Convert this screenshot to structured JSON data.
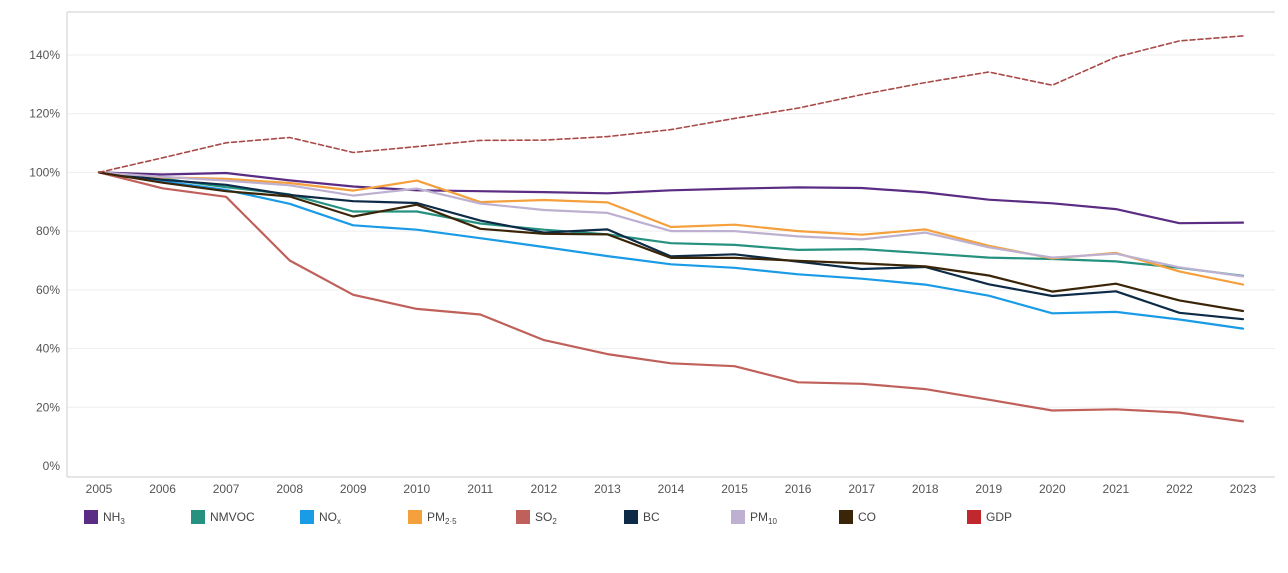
{
  "chart_data": {
    "type": "line",
    "title": "",
    "xlabel": "",
    "ylabel": "",
    "x": [
      "2005",
      "2006",
      "2007",
      "2008",
      "2009",
      "2010",
      "2011",
      "2012",
      "2013",
      "2014",
      "2015",
      "2016",
      "2017",
      "2018",
      "2019",
      "2020",
      "2021",
      "2022",
      "2023"
    ],
    "ylim": [
      0,
      150
    ],
    "yticks": [
      0,
      20,
      40,
      60,
      80,
      100,
      120,
      140
    ],
    "ytick_labels": [
      "0%",
      "20%",
      "40%",
      "60%",
      "80%",
      "100%",
      "120%",
      "140%"
    ],
    "grid": true,
    "legend_position": "bottom",
    "series": [
      {
        "name": "NH",
        "sub": "3",
        "sub_style": "sub",
        "color": "#5b2c83",
        "dashed": false,
        "values": [
          100,
          99.3,
          99.8,
          97.3,
          95.2,
          93.9,
          93.6,
          93.3,
          92.9,
          93.9,
          94.5,
          94.9,
          94.7,
          93.2,
          90.7,
          89.5,
          87.5,
          82.7,
          82.9
        ]
      },
      {
        "name": "NMVOC",
        "sub": "",
        "sub_style": "",
        "color": "#26917f",
        "dashed": false,
        "values": [
          100,
          97.9,
          95.0,
          92.5,
          86.7,
          86.7,
          82.6,
          80.5,
          78.9,
          75.9,
          75.3,
          73.6,
          73.9,
          72.5,
          71.0,
          70.5,
          69.7,
          67.5,
          64.8
        ]
      },
      {
        "name": "NO",
        "sub": "x",
        "sub_style": "sub",
        "color": "#1a9be6",
        "dashed": false,
        "values": [
          100,
          97.0,
          94.0,
          89.3,
          82.0,
          80.5,
          77.6,
          74.6,
          71.5,
          68.7,
          67.5,
          65.3,
          63.8,
          61.8,
          58.0,
          52.0,
          52.5,
          49.9,
          46.8
        ]
      },
      {
        "name": "PM",
        "sub": "2·5",
        "sub_style": "sub",
        "color": "#f4a03c",
        "dashed": false,
        "values": [
          100,
          98.3,
          97.8,
          96.4,
          93.8,
          97.2,
          89.9,
          90.6,
          89.8,
          81.4,
          82.2,
          80.0,
          78.8,
          80.6,
          75.0,
          70.7,
          72.6,
          66.3,
          61.8
        ]
      },
      {
        "name": "SO",
        "sub": "2",
        "sub_style": "sub",
        "color": "#c0605a",
        "dashed": false,
        "values": [
          100,
          94.6,
          91.7,
          70.0,
          58.3,
          53.5,
          51.6,
          42.9,
          38.1,
          35.0,
          34.0,
          28.5,
          28.0,
          26.2,
          22.6,
          18.9,
          19.3,
          18.2,
          15.2
        ]
      },
      {
        "name": "BC",
        "sub": "",
        "sub_style": "",
        "color": "#0d2b47",
        "dashed": false,
        "values": [
          100,
          97.5,
          95.8,
          92.3,
          90.2,
          89.6,
          83.6,
          79.5,
          80.6,
          71.4,
          72.1,
          69.6,
          67.1,
          67.8,
          61.9,
          57.9,
          59.5,
          52.2,
          50.0
        ]
      },
      {
        "name": "PM",
        "sub": "10",
        "sub_style": "sub",
        "color": "#bdb0d0",
        "dashed": false,
        "values": [
          100,
          98.5,
          97.2,
          95.6,
          92.1,
          94.5,
          89.4,
          87.2,
          86.2,
          80.0,
          80.0,
          78.2,
          77.2,
          79.5,
          74.5,
          71.0,
          72.3,
          67.7,
          64.6
        ]
      },
      {
        "name": "CO",
        "sub": "",
        "sub_style": "",
        "color": "#3a2508",
        "dashed": false,
        "values": [
          100,
          96.5,
          93.6,
          91.8,
          85.0,
          89.0,
          80.8,
          79.1,
          78.9,
          70.9,
          70.9,
          69.9,
          69.0,
          68.0,
          64.9,
          59.4,
          62.1,
          56.4,
          52.8
        ]
      },
      {
        "name": "GDP",
        "sub": "",
        "sub_style": "",
        "color": "#a84a47",
        "dashed": true,
        "legend_color": "#c0282d",
        "values": [
          100,
          105.0,
          110.1,
          111.9,
          106.8,
          108.8,
          110.9,
          111.0,
          112.2,
          114.6,
          118.4,
          121.9,
          126.5,
          130.6,
          134.2,
          129.7,
          139.3,
          144.8,
          146.5
        ]
      }
    ]
  }
}
